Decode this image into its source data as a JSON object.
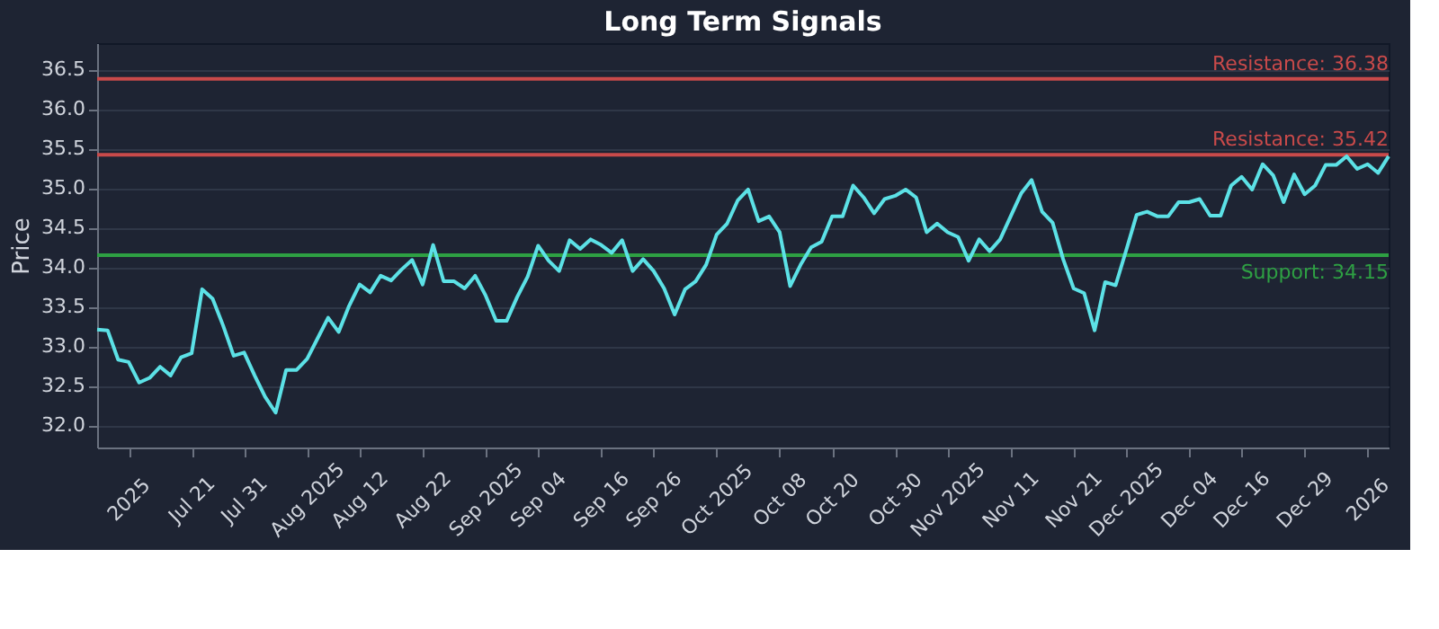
{
  "chart_data": {
    "type": "line",
    "title": "Long Term Signals",
    "ylabel": "Price",
    "categories": [
      null,
      null,
      null,
      "2025",
      null,
      null,
      null,
      null,
      null,
      "Jul 21",
      null,
      null,
      null,
      null,
      "Jul 31",
      null,
      null,
      null,
      null,
      null,
      "Aug 2025",
      null,
      null,
      null,
      null,
      "Aug 12",
      null,
      null,
      null,
      null,
      null,
      "Aug 22",
      null,
      null,
      null,
      null,
      null,
      "Sep 2025",
      null,
      null,
      null,
      null,
      "Sep 04",
      null,
      null,
      null,
      null,
      null,
      "Sep 16",
      null,
      null,
      null,
      null,
      "Sep 26",
      null,
      null,
      null,
      null,
      null,
      "Oct 2025",
      null,
      null,
      null,
      null,
      null,
      "Oct 08",
      null,
      null,
      null,
      null,
      "Oct 20",
      null,
      null,
      null,
      null,
      null,
      "Oct 30",
      null,
      null,
      null,
      null,
      "Nov 2025",
      null,
      null,
      null,
      null,
      null,
      "Nov 11",
      null,
      null,
      null,
      null,
      null,
      "Nov 21",
      null,
      null,
      null,
      null,
      "Dec 2025",
      null,
      null,
      null,
      null,
      null,
      "Dec 04",
      null,
      null,
      null,
      null,
      "Dec 16",
      null,
      null,
      null,
      null,
      null,
      "Dec 29",
      null,
      null,
      null,
      null,
      null,
      "2026",
      null,
      null
    ],
    "series": [
      {
        "color": "#5ce1e6",
        "values": [
          33.21,
          33.2,
          32.83,
          32.8,
          32.54,
          32.6,
          32.74,
          32.63,
          32.86,
          32.91,
          33.72,
          33.6,
          33.26,
          32.88,
          32.92,
          32.63,
          32.36,
          32.16,
          32.7,
          32.7,
          32.84,
          33.1,
          33.36,
          33.18,
          33.51,
          33.78,
          33.68,
          33.89,
          33.83,
          33.97,
          34.09,
          33.78,
          34.28,
          33.82,
          33.82,
          33.73,
          33.89,
          33.64,
          33.32,
          33.32,
          33.62,
          33.88,
          34.27,
          34.08,
          33.95,
          34.34,
          34.23,
          34.35,
          34.28,
          34.18,
          34.34,
          33.95,
          34.1,
          33.95,
          33.73,
          33.4,
          33.72,
          33.82,
          34.03,
          34.41,
          34.55,
          34.84,
          34.98,
          34.58,
          34.64,
          34.44,
          33.76,
          34.03,
          34.25,
          34.32,
          34.64,
          34.64,
          35.03,
          34.88,
          34.68,
          34.86,
          34.9,
          34.98,
          34.88,
          34.44,
          34.55,
          34.44,
          34.38,
          34.08,
          34.35,
          34.2,
          34.35,
          34.64,
          34.93,
          35.1,
          34.7,
          34.56,
          34.1,
          33.73,
          33.67,
          33.2,
          33.81,
          33.77,
          34.21,
          34.66,
          34.7,
          34.64,
          34.64,
          34.82,
          34.82,
          34.86,
          34.65,
          34.65,
          35.03,
          35.14,
          34.98,
          35.3,
          35.16,
          34.82,
          35.17,
          34.92,
          35.03,
          35.29,
          35.29,
          35.4,
          35.24,
          35.3,
          35.19,
          35.4
        ]
      }
    ],
    "ylim": [
      31.72,
      36.83
    ],
    "yticks": [
      {
        "value": 32,
        "label": "32.0"
      },
      32.5,
      {
        "value": 33,
        "label": "33.0"
      },
      33.5,
      {
        "value": 34,
        "label": "34.0"
      },
      34.5,
      {
        "value": 35,
        "label": "35.0"
      },
      35.5,
      {
        "value": 36,
        "label": "36.0"
      },
      36.5
    ],
    "ref_lines": [
      {
        "axis": "y",
        "value": 36.38,
        "label": "Resistance: 36.38",
        "color": "#c94a4a"
      },
      {
        "axis": "y",
        "value": 35.42,
        "label": "Resistance: 35.42",
        "color": "#c94a4a"
      },
      {
        "axis": "y",
        "value": 34.15,
        "label": "Support: 34.15",
        "color": "#2ea043"
      }
    ],
    "grid": "y",
    "marker": "none",
    "line_style": "solid"
  }
}
